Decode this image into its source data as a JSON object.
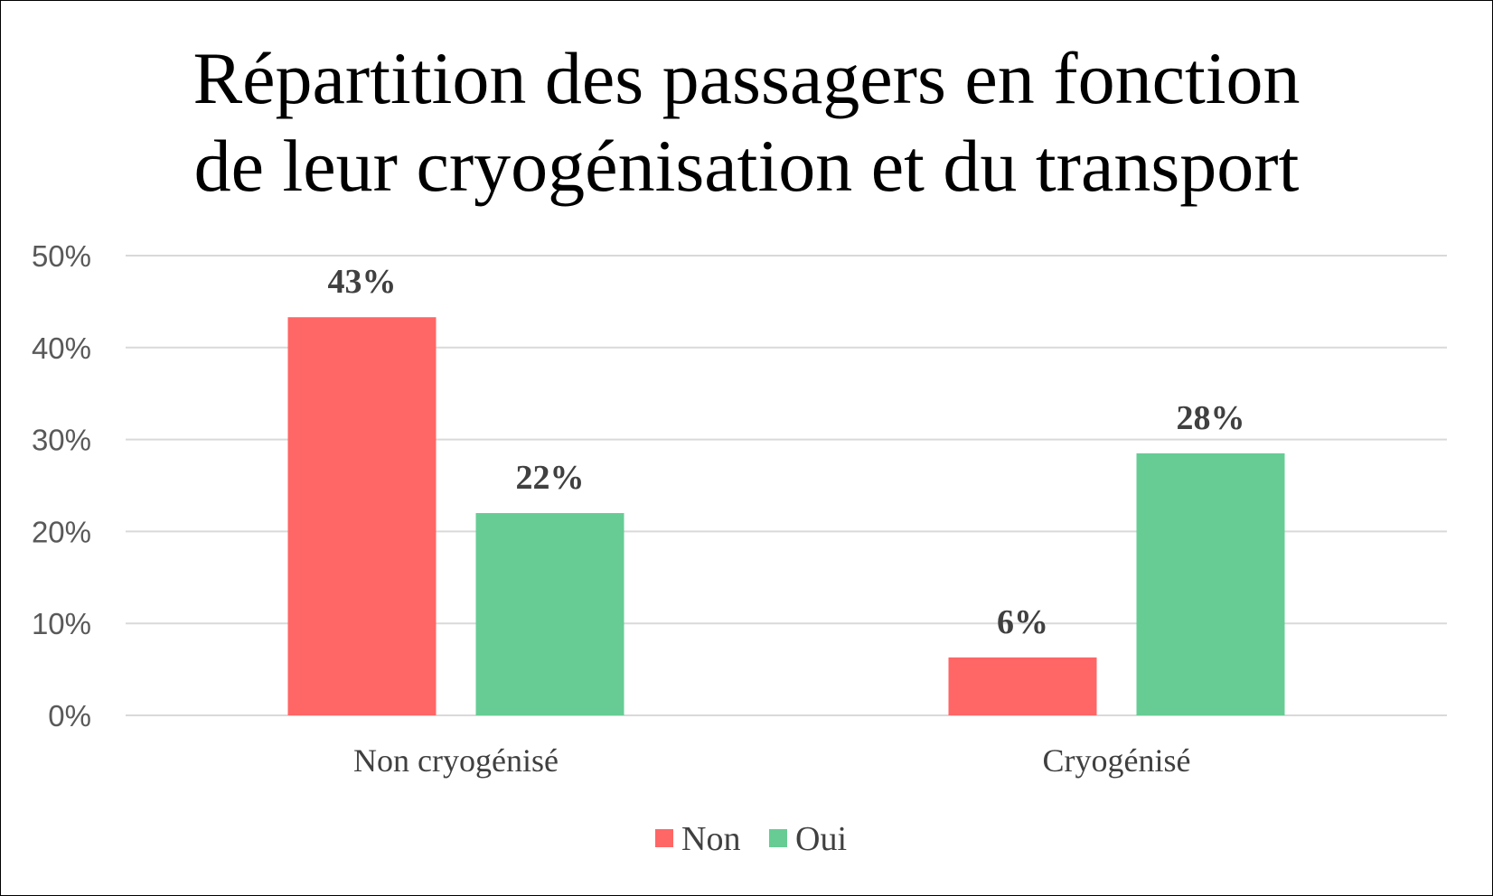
{
  "chart_data": {
    "type": "bar",
    "title_lines": [
      "Répartition des passagers en fonction",
      "de leur cryogénisation et du transport"
    ],
    "categories": [
      "Non cryogénisé",
      "Cryogénisé"
    ],
    "series": [
      {
        "name": "Non",
        "values": [
          43.3,
          6.3
        ],
        "labels": [
          "43%",
          "6%"
        ],
        "color": "#ff6666"
      },
      {
        "name": "Oui",
        "values": [
          22.0,
          28.5
        ],
        "labels": [
          "22%",
          "28%"
        ],
        "color": "#66cc94"
      }
    ],
    "y_ticks": [
      "0%",
      "10%",
      "20%",
      "30%",
      "40%",
      "50%"
    ],
    "ylim": [
      0,
      50
    ],
    "grid": true,
    "legend_position": "bottom"
  }
}
